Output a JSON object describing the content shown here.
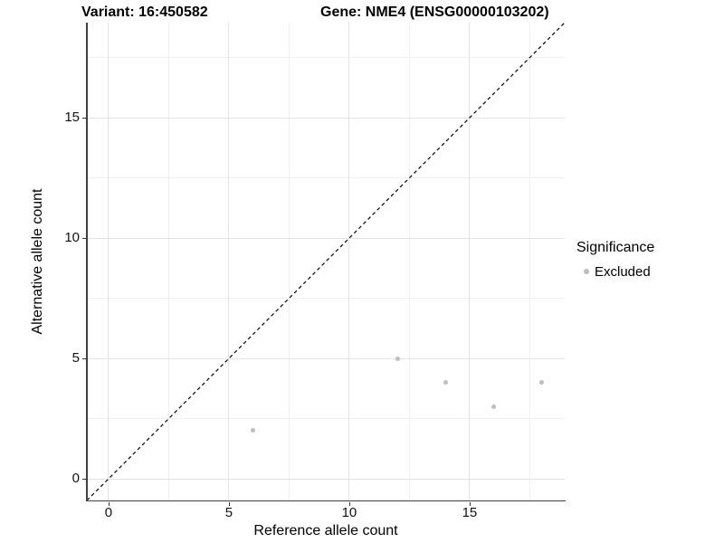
{
  "chart_data": {
    "type": "scatter",
    "title_left": "Variant: 16:450582",
    "title_right": "Gene: NME4 (ENSG00000103202)",
    "xlabel": "Reference allele count",
    "ylabel": "Alternative allele count",
    "xlim": [
      -0.9,
      18.95
    ],
    "ylim": [
      -0.9,
      18.95
    ],
    "x_ticks": [
      0,
      5,
      10,
      15
    ],
    "y_ticks": [
      0,
      5,
      10,
      15
    ],
    "x_minor_ticks": [
      2.5,
      7.5,
      12.5,
      17.5
    ],
    "y_minor_ticks": [
      2.5,
      7.5,
      12.5,
      17.5
    ],
    "grid": true,
    "legend_position": "right",
    "series": [
      {
        "name": "Excluded",
        "color": "#bebebe",
        "marker": "circle",
        "marker_diameter_px": 5,
        "points": [
          [
            6,
            2
          ],
          [
            12,
            5
          ],
          [
            14,
            4
          ],
          [
            16,
            3
          ],
          [
            18,
            4
          ]
        ]
      }
    ],
    "reference_line": {
      "slope": 1,
      "intercept": 0,
      "style": "dashed",
      "color": "#000000"
    }
  },
  "legend": {
    "title": "Significance",
    "items": [
      {
        "label": "Excluded",
        "color": "#bebebe"
      }
    ]
  },
  "colors": {
    "background": "#ffffff",
    "grid_major": "#e3e3e3",
    "grid_minor": "#f0f0f0",
    "axis_line": "#404040",
    "tick_mark": "#333333",
    "text": "#000000",
    "point": "#bebebe"
  }
}
